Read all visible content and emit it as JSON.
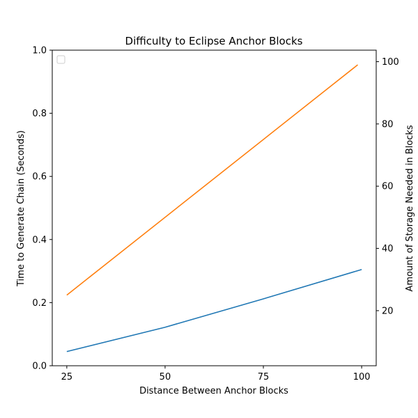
{
  "chart_data": {
    "type": "line",
    "title": "Difficulty to Eclipse Anchor Blocks",
    "xlabel": "Distance Between Anchor Blocks",
    "ylabel_left": "Time to Generate Chain (Seconds)",
    "ylabel_right": "Amount of Storage Needed in Blocks",
    "xlim": [
      21.3,
      103.7
    ],
    "x_ticks": [
      25,
      50,
      75,
      100
    ],
    "ylim_left": [
      0,
      1
    ],
    "y_ticks_left": [
      "0.0",
      "0.2",
      "0.4",
      "0.6",
      "0.8",
      "1.0"
    ],
    "ylim_right": [
      2.3,
      103.7
    ],
    "y_ticks_right": [
      20,
      40,
      60,
      80,
      100
    ],
    "grid": false,
    "legend": {
      "placement": "upper-left",
      "entries": []
    },
    "series": [
      {
        "axis": "left",
        "color": "#1f77b4",
        "x": [
          25,
          50,
          75,
          100
        ],
        "y": [
          0.045,
          0.122,
          0.212,
          0.305
        ]
      },
      {
        "axis": "right",
        "color": "#ff7f0e",
        "x": [
          25,
          99
        ],
        "y": [
          25,
          99
        ]
      }
    ]
  }
}
